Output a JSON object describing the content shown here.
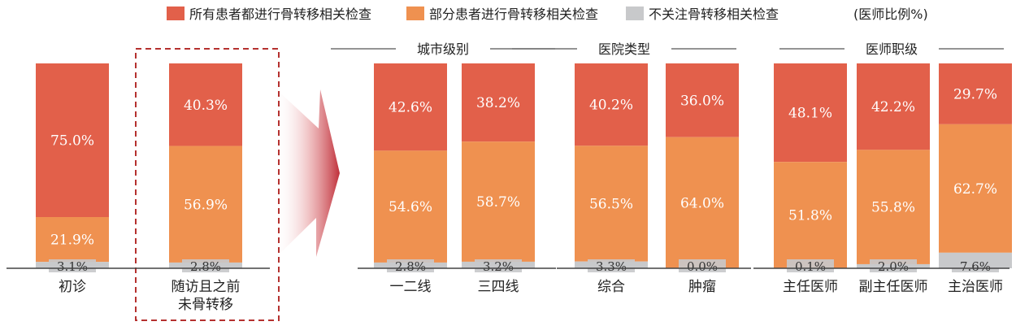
{
  "chart_data": {
    "type": "bar",
    "stacked": true,
    "percent": true,
    "unit_note": "(医师比例%)",
    "colors": {
      "all": "#E2604A",
      "some": "#EF9150",
      "none": "#C8C9CB",
      "highlight_box": "#B5312F"
    },
    "legend": [
      {
        "key": "all",
        "label": "所有患者都进行骨转移相关检查"
      },
      {
        "key": "some",
        "label": "部分患者进行骨转移相关检查"
      },
      {
        "key": "none",
        "label": "不关注骨转移相关检查"
      }
    ],
    "groups": [
      {
        "title": "",
        "bars": [
          {
            "category": "初诊",
            "all": 75.0,
            "some": 21.9,
            "none": 3.1
          },
          {
            "category": "随访且之前未骨转移",
            "category_lines": [
              "随访且之前",
              "未骨转移"
            ],
            "all": 40.3,
            "some": 56.9,
            "none": 2.8,
            "highlighted": true
          }
        ]
      },
      {
        "title": "城市级别",
        "bars": [
          {
            "category": "一二线",
            "all": 42.6,
            "some": 54.6,
            "none": 2.8
          },
          {
            "category": "三四线",
            "all": 38.2,
            "some": 58.7,
            "none": 3.2
          }
        ]
      },
      {
        "title": "医院类型",
        "bars": [
          {
            "category": "综合",
            "all": 40.2,
            "some": 56.5,
            "none": 3.3
          },
          {
            "category": "肿瘤",
            "all": 36.0,
            "some": 64.0,
            "none": 0.0
          }
        ]
      },
      {
        "title": "医师职级",
        "bars": [
          {
            "category": "主任医师",
            "all": 48.1,
            "some": 51.8,
            "none": 0.1
          },
          {
            "category": "副主任医师",
            "all": 42.2,
            "some": 55.8,
            "none": 2.0
          },
          {
            "category": "主治医师",
            "all": 29.7,
            "some": 62.7,
            "none": 7.6
          }
        ]
      }
    ]
  }
}
